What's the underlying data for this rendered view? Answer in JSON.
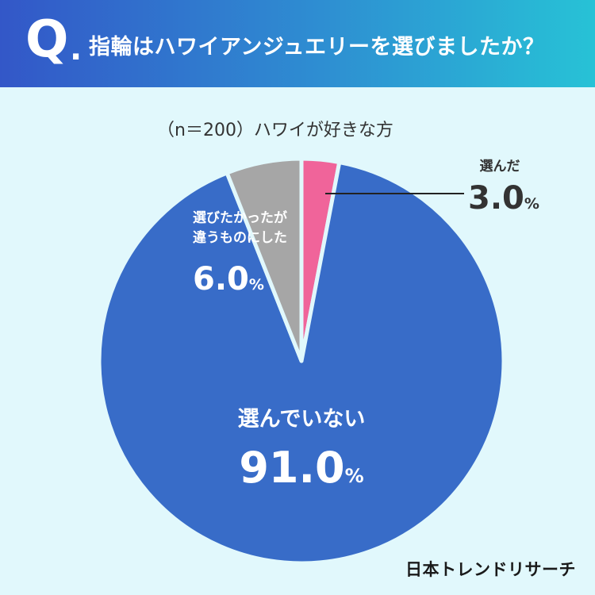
{
  "header": {
    "q_letter": "Q",
    "q_dot": ".",
    "question": "指輪はハワイアンジュエリーを選びましたか？"
  },
  "subtitle": "（n＝200）ハワイが好きな方",
  "colors": {
    "header_start": "#3357c8",
    "header_end": "#27c2d6",
    "background": "#e1f8fc",
    "pink": "#f0649a",
    "blue": "#386cc8",
    "gray": "#a6a6a6"
  },
  "chart_data": {
    "type": "pie",
    "unit": "%",
    "slices": [
      {
        "label": "選んだ",
        "value": 3.0,
        "color": "#f0649a"
      },
      {
        "label": "選んでいない",
        "value": 91.0,
        "color": "#386cc8"
      },
      {
        "label": "選びたかったが 違うものにした",
        "value": 6.0,
        "color": "#a6a6a6"
      }
    ],
    "labels": {
      "chose": {
        "name": "選んだ",
        "value": "3.0",
        "unit": "%"
      },
      "not_chose": {
        "name": "選んでいない",
        "value": "91.0",
        "unit": "%"
      },
      "wanted_other_line1": "選びたかったが",
      "wanted_other_line2": "違うものにした",
      "wanted_other_value": "6.0",
      "wanted_other_unit": "%"
    }
  },
  "footer": {
    "logo": "日本トレンドリサーチ"
  }
}
